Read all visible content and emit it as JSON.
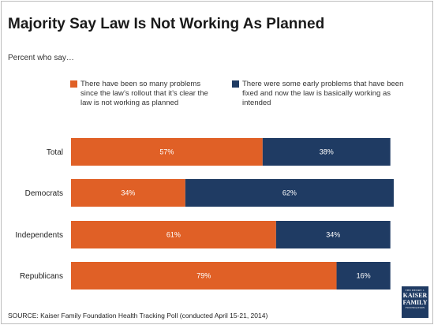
{
  "title": "Majority Say Law Is Not Working As Planned",
  "subtitle": "Percent who say…",
  "legend": [
    {
      "label": "There have been so many problems since the law’s rollout that it’s clear the law is not working as planned",
      "color": "#e06026"
    },
    {
      "label": "There were some early problems that have been fixed and now the law is basically working as intended",
      "color": "#1f3b63"
    }
  ],
  "chart_data": {
    "type": "bar",
    "orientation": "horizontal",
    "stacked": true,
    "categories": [
      "Total",
      "Democrats",
      "Independents",
      "Republicans"
    ],
    "series": [
      {
        "name": "There have been so many problems since the law’s rollout that it’s clear the law is not working as planned",
        "values": [
          57,
          34,
          61,
          79
        ],
        "color": "#e06026"
      },
      {
        "name": "There were some early problems that have been fixed and now the law is basically working as intended",
        "values": [
          38,
          62,
          34,
          16
        ],
        "color": "#1f3b63"
      }
    ],
    "value_suffix": "%",
    "grid": false,
    "legend_position": "top"
  },
  "source": "SOURCE: Kaiser Family Foundation Health Tracking Poll (conducted April 15-21, 2014)",
  "logo": {
    "line1": "THE HENRY J.",
    "line2": "KAISER",
    "line3": "FAMILY",
    "line4": "FOUNDATION"
  }
}
